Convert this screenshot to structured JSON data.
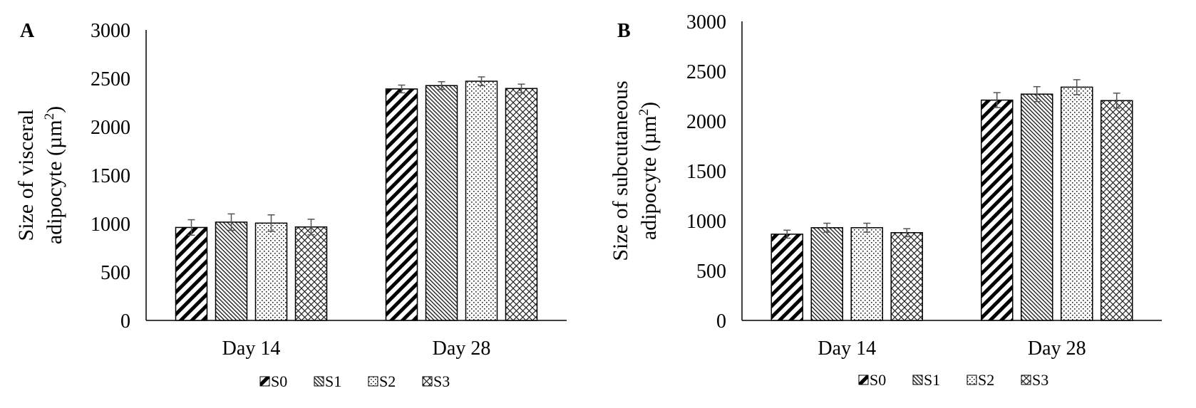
{
  "chart_data": [
    {
      "type": "bar",
      "panel_label": "A",
      "categories": [
        "Day 14",
        "Day 28"
      ],
      "ylabel_lines": [
        "Size of visceral",
        "adipocyte (µm",
        "2",
        ")"
      ],
      "ylim": [
        0,
        3000
      ],
      "yticks": [
        0,
        500,
        1000,
        1500,
        2000,
        2500,
        3000
      ],
      "grid": false,
      "legend_position": "bottom",
      "series": [
        {
          "name": "S0",
          "pattern": "diag-thick",
          "values": [
            960,
            2390
          ],
          "errors": [
            80,
            40
          ]
        },
        {
          "name": "S1",
          "pattern": "diag-fine",
          "values": [
            1015,
            2425
          ],
          "errors": [
            85,
            40
          ]
        },
        {
          "name": "S2",
          "pattern": "dots",
          "values": [
            1005,
            2470
          ],
          "errors": [
            85,
            45
          ]
        },
        {
          "name": "S3",
          "pattern": "cross",
          "values": [
            965,
            2395
          ],
          "errors": [
            80,
            45
          ]
        }
      ]
    },
    {
      "type": "bar",
      "panel_label": "B",
      "categories": [
        "Day 14",
        "Day 28"
      ],
      "ylabel_lines": [
        "Size of subcutaneous",
        "adipocyte (µm",
        "2",
        ")"
      ],
      "ylim": [
        0,
        3000
      ],
      "yticks": [
        0,
        500,
        1000,
        1500,
        2000,
        2500,
        3000
      ],
      "grid": false,
      "legend_position": "bottom",
      "series": [
        {
          "name": "S0",
          "pattern": "diag-thick",
          "values": [
            865,
            2210
          ],
          "errors": [
            40,
            75
          ]
        },
        {
          "name": "S1",
          "pattern": "diag-fine",
          "values": [
            930,
            2270
          ],
          "errors": [
            45,
            75
          ]
        },
        {
          "name": "S2",
          "pattern": "dots",
          "values": [
            930,
            2340
          ],
          "errors": [
            45,
            75
          ]
        },
        {
          "name": "S3",
          "pattern": "cross",
          "values": [
            880,
            2205
          ],
          "errors": [
            40,
            75
          ]
        }
      ]
    }
  ]
}
